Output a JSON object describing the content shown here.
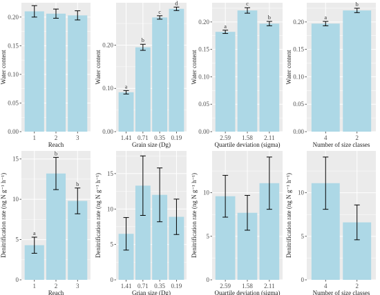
{
  "colors": {
    "panel_bg": "#ebebeb",
    "grid": "#ffffff",
    "bar_fill": "#add8e6",
    "error_bar": "#000000",
    "text": "#4d4d4d"
  },
  "chart_data": [
    {
      "type": "bar",
      "xlabel": "Reach",
      "ylabel": "Water content",
      "categories": [
        "1",
        "2",
        "3"
      ],
      "values": [
        0.21,
        0.206,
        0.203
      ],
      "errors": [
        0.01,
        0.008,
        0.008
      ],
      "ylim": [
        0,
        0.225
      ],
      "yticks": [
        "0.00",
        "0.05",
        "0.10",
        "0.15",
        "0.20"
      ],
      "ytick_values": [
        0,
        0.05,
        0.1,
        0.15,
        0.2
      ],
      "significance": []
    },
    {
      "type": "bar",
      "xlabel": "Grain size (Dg)",
      "ylabel": "Water content",
      "categories": [
        "1.41",
        "0.71",
        "0.35",
        "0.19"
      ],
      "values": [
        0.091,
        0.195,
        0.264,
        0.284
      ],
      "errors": [
        0.004,
        0.007,
        0.004,
        0.004
      ],
      "ylim": [
        0,
        0.298
      ],
      "yticks": [
        "0.00",
        "0.10",
        "0.20"
      ],
      "ytick_values": [
        0,
        0.1,
        0.2
      ],
      "significance": [
        "a",
        "b",
        "c",
        "d"
      ]
    },
    {
      "type": "bar",
      "xlabel": "Quartile deviation (sigma)",
      "ylabel": "Water content",
      "categories": [
        "2.59",
        "1.58",
        "2.11"
      ],
      "values": [
        0.182,
        0.221,
        0.197
      ],
      "errors": [
        0.003,
        0.005,
        0.004
      ],
      "ylim": [
        0,
        0.235
      ],
      "yticks": [
        "0.00",
        "0.05",
        "0.10",
        "0.15",
        "0.20"
      ],
      "ytick_values": [
        0,
        0.05,
        0.1,
        0.15,
        0.2
      ],
      "significance": [
        "a",
        "c",
        "b"
      ]
    },
    {
      "type": "bar",
      "xlabel": "Number of size classes",
      "ylabel": "Water content",
      "categories": [
        "4",
        "2"
      ],
      "values": [
        0.197,
        0.221
      ],
      "errors": [
        0.004,
        0.004
      ],
      "ylim": [
        0,
        0.235
      ],
      "yticks": [
        "0.00",
        "0.05",
        "0.10",
        "0.15",
        "0.20"
      ],
      "ytick_values": [
        0,
        0.05,
        0.1,
        0.15,
        0.2
      ],
      "significance": [
        "a",
        "b"
      ]
    },
    {
      "type": "bar",
      "xlabel": "Reach",
      "ylabel": "Denitrification rate (ng N g⁻¹ h⁻¹)",
      "categories": [
        "1",
        "2",
        "3"
      ],
      "values": [
        4.3,
        13.2,
        9.8
      ],
      "errors": [
        1.0,
        2.0,
        1.6
      ],
      "ylim": [
        0,
        16.0
      ],
      "yticks": [
        "0",
        "5",
        "10",
        "15"
      ],
      "ytick_values": [
        0,
        5,
        10,
        15
      ],
      "significance": [
        "a",
        "b",
        "b"
      ]
    },
    {
      "type": "bar",
      "xlabel": "Grian size (Dg)",
      "ylabel": "Denitrification rate (ng N g⁻¹ h⁻¹)",
      "categories": [
        "1.41",
        "0.71",
        "0.35",
        "0.19"
      ],
      "values": [
        6.5,
        13.3,
        12.0,
        8.9
      ],
      "errors": [
        2.3,
        4.2,
        3.8,
        2.5
      ],
      "ylim": [
        0,
        18.2
      ],
      "yticks": [
        "0",
        "5",
        "10",
        "15"
      ],
      "ytick_values": [
        0,
        5,
        10,
        15
      ],
      "significance": []
    },
    {
      "type": "bar",
      "xlabel": "Quartile deviation (sigma)",
      "ylabel": "Denitrification rate (ng N g⁻¹ h⁻¹)",
      "categories": [
        "2.59",
        "1.58",
        "2.11"
      ],
      "values": [
        9.6,
        7.7,
        11.1
      ],
      "errors": [
        2.4,
        2.0,
        3.0
      ],
      "ylim": [
        0,
        14.8
      ],
      "yticks": [
        "0",
        "5",
        "10"
      ],
      "ytick_values": [
        0,
        5,
        10
      ],
      "significance": []
    },
    {
      "type": "bar",
      "xlabel": "Number of size classes",
      "ylabel": "Denitrification rate (ng N g⁻¹ h⁻¹)",
      "categories": [
        "4",
        "2"
      ],
      "values": [
        11.1,
        6.6
      ],
      "errors": [
        3.0,
        2.0
      ],
      "ylim": [
        0,
        14.8
      ],
      "yticks": [
        "0",
        "5",
        "10"
      ],
      "ytick_values": [
        0,
        5,
        10
      ],
      "significance": []
    }
  ]
}
